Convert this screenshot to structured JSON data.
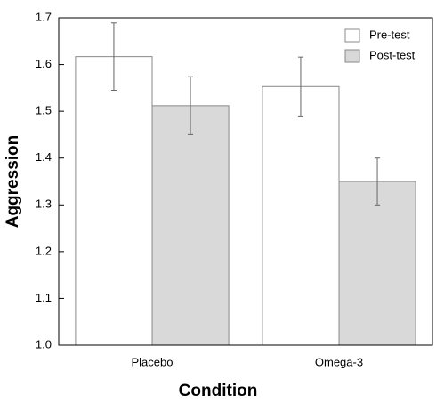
{
  "chart_data": {
    "type": "bar",
    "x_label": "Condition",
    "y_label": "Aggression",
    "categories": [
      "Placebo",
      "Omega-3"
    ],
    "series": [
      {
        "name": "Pre-test",
        "color": "#ffffff",
        "values": [
          1.617,
          1.553
        ],
        "errors": [
          0.072,
          0.063
        ]
      },
      {
        "name": "Post-test",
        "color": "#d9d9d9",
        "values": [
          1.512,
          1.35
        ],
        "errors": [
          0.062,
          0.05
        ]
      }
    ],
    "ylim": [
      1.0,
      1.7
    ],
    "yticks": [
      {
        "value": 1.0,
        "label": "1.0"
      },
      1.1,
      1.2,
      1.3,
      1.4,
      1.5,
      1.6,
      1.7
    ],
    "legend": "top-right"
  }
}
